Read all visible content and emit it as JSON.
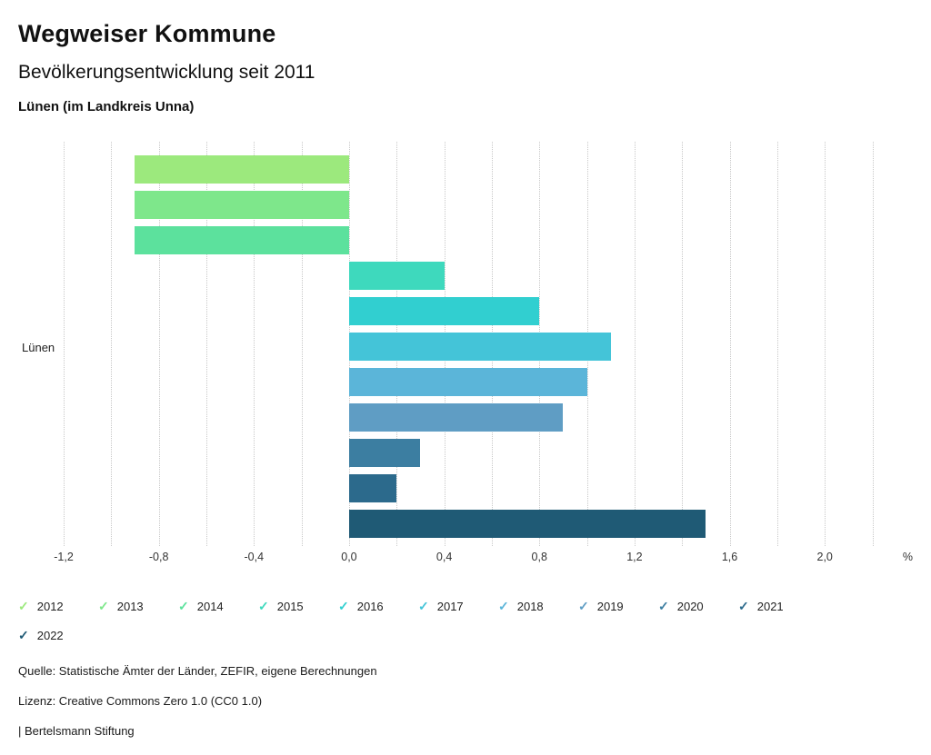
{
  "header": {
    "title": "Wegweiser Kommune",
    "subtitle": "Bevölkerungsentwicklung seit 2011",
    "region": "Lünen (im Landkreis Unna)"
  },
  "chart_data": {
    "type": "bar",
    "orientation": "horizontal",
    "group_label": "Lünen",
    "categories": [
      "2012",
      "2013",
      "2014",
      "2015",
      "2016",
      "2017",
      "2018",
      "2019",
      "2020",
      "2021",
      "2022"
    ],
    "values": [
      -0.9,
      -0.9,
      -0.9,
      0.4,
      0.8,
      1.1,
      1.0,
      0.9,
      0.3,
      0.2,
      1.5
    ],
    "colors": [
      "#9ce97d",
      "#7ee78b",
      "#5ce19d",
      "#3ed9bd",
      "#31cfd0",
      "#44c4d8",
      "#5bb5d9",
      "#5f9dc4",
      "#3c7ea1",
      "#2c6a8c",
      "#1f5a75"
    ],
    "axis": {
      "min": -1.2,
      "max": 2.37,
      "grid_min": -1.2,
      "grid_max": 2.2,
      "grid_step": 0.2,
      "ticks": [
        {
          "value": -1.2,
          "label": "-1,2"
        },
        {
          "value": -0.8,
          "label": "-0,8"
        },
        {
          "value": -0.4,
          "label": "-0,4"
        },
        {
          "value": 0.0,
          "label": "0,0"
        },
        {
          "value": 0.4,
          "label": "0,4"
        },
        {
          "value": 0.8,
          "label": "0,8"
        },
        {
          "value": 1.2,
          "label": "1,2"
        },
        {
          "value": 1.6,
          "label": "1,6"
        },
        {
          "value": 2.0,
          "label": "2,0"
        }
      ],
      "unit": "%"
    },
    "grid": true,
    "legend_position": "bottom"
  },
  "legend": {
    "items_per_row": 10,
    "check_glyph": "✓",
    "items": [
      {
        "label": "2012",
        "color": "#9ce97d"
      },
      {
        "label": "2013",
        "color": "#7ee78b"
      },
      {
        "label": "2014",
        "color": "#5ce19d"
      },
      {
        "label": "2015",
        "color": "#3ed9bd"
      },
      {
        "label": "2016",
        "color": "#31cfd0"
      },
      {
        "label": "2017",
        "color": "#44c4d8"
      },
      {
        "label": "2018",
        "color": "#5bb5d9"
      },
      {
        "label": "2019",
        "color": "#5f9dc4"
      },
      {
        "label": "2020",
        "color": "#3c7ea1"
      },
      {
        "label": "2021",
        "color": "#2c6a8c"
      },
      {
        "label": "2022",
        "color": "#1f5a75"
      }
    ]
  },
  "footer": {
    "source": "Quelle: Statistische Ämter der Länder, ZEFIR, eigene Berechnungen",
    "license": "Lizenz: Creative Commons Zero 1.0 (CC0 1.0)",
    "attribution": "| Bertelsmann Stiftung"
  }
}
